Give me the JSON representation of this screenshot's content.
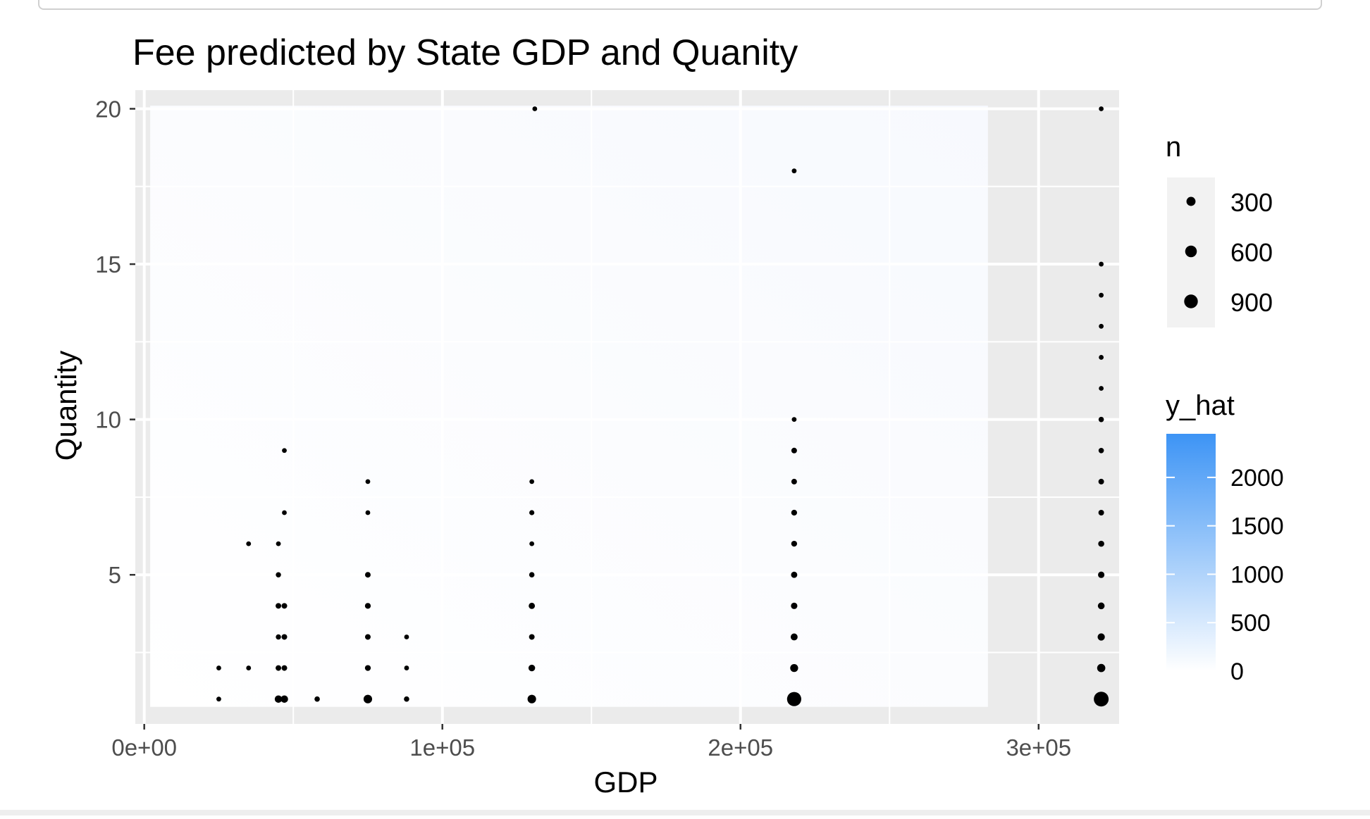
{
  "chart_data": {
    "type": "scatter",
    "title": "Fee predicted by State GDP and Quanity",
    "xlabel": "GDP",
    "ylabel": "Quantity",
    "xlim": [
      -3000,
      327000
    ],
    "ylim": [
      0.2,
      20.6
    ],
    "x_ticks": [
      {
        "value": 0,
        "label": "0e+00"
      },
      {
        "value": 100000,
        "label": "1e+05"
      },
      {
        "value": 200000,
        "label": "2e+05"
      },
      {
        "value": 300000,
        "label": "3e+05"
      }
    ],
    "y_ticks": [
      {
        "value": 5,
        "label": "5"
      },
      {
        "value": 10,
        "label": "10"
      },
      {
        "value": 15,
        "label": "15"
      },
      {
        "value": 20,
        "label": "20"
      }
    ],
    "grid": true,
    "prediction_surface": {
      "gdp_range": [
        2000,
        283000
      ],
      "quantity_range": [
        0.75,
        20.1
      ],
      "fill_color_low": "#ffffff",
      "fill_color_high": "#f7f9fe"
    },
    "points": [
      {
        "x": 25000,
        "y": 1,
        "n": 30
      },
      {
        "x": 25000,
        "y": 2,
        "n": 30
      },
      {
        "x": 35000,
        "y": 2,
        "n": 30
      },
      {
        "x": 35000,
        "y": 6,
        "n": 30
      },
      {
        "x": 45000,
        "y": 1,
        "n": 160
      },
      {
        "x": 45000,
        "y": 2,
        "n": 60
      },
      {
        "x": 45000,
        "y": 3,
        "n": 45
      },
      {
        "x": 45000,
        "y": 4,
        "n": 60
      },
      {
        "x": 45000,
        "y": 5,
        "n": 45
      },
      {
        "x": 45000,
        "y": 6,
        "n": 30
      },
      {
        "x": 47000,
        "y": 1,
        "n": 160
      },
      {
        "x": 47000,
        "y": 2,
        "n": 60
      },
      {
        "x": 47000,
        "y": 3,
        "n": 60
      },
      {
        "x": 47000,
        "y": 4,
        "n": 60
      },
      {
        "x": 47000,
        "y": 7,
        "n": 30
      },
      {
        "x": 47000,
        "y": 9,
        "n": 30
      },
      {
        "x": 58000,
        "y": 1,
        "n": 50
      },
      {
        "x": 75000,
        "y": 1,
        "n": 250
      },
      {
        "x": 75000,
        "y": 2,
        "n": 70
      },
      {
        "x": 75000,
        "y": 3,
        "n": 60
      },
      {
        "x": 75000,
        "y": 4,
        "n": 70
      },
      {
        "x": 75000,
        "y": 5,
        "n": 60
      },
      {
        "x": 75000,
        "y": 7,
        "n": 30
      },
      {
        "x": 75000,
        "y": 8,
        "n": 30
      },
      {
        "x": 88000,
        "y": 1,
        "n": 50
      },
      {
        "x": 88000,
        "y": 2,
        "n": 30
      },
      {
        "x": 88000,
        "y": 3,
        "n": 30
      },
      {
        "x": 130000,
        "y": 1,
        "n": 250
      },
      {
        "x": 130000,
        "y": 2,
        "n": 110
      },
      {
        "x": 130000,
        "y": 3,
        "n": 60
      },
      {
        "x": 130000,
        "y": 4,
        "n": 90
      },
      {
        "x": 130000,
        "y": 5,
        "n": 50
      },
      {
        "x": 130000,
        "y": 6,
        "n": 30
      },
      {
        "x": 130000,
        "y": 7,
        "n": 40
      },
      {
        "x": 130000,
        "y": 8,
        "n": 30
      },
      {
        "x": 131000,
        "y": 20,
        "n": 30
      },
      {
        "x": 218000,
        "y": 1,
        "n": 1000
      },
      {
        "x": 218000,
        "y": 2,
        "n": 200
      },
      {
        "x": 218000,
        "y": 3,
        "n": 130
      },
      {
        "x": 218000,
        "y": 4,
        "n": 100
      },
      {
        "x": 218000,
        "y": 5,
        "n": 90
      },
      {
        "x": 218000,
        "y": 6,
        "n": 70
      },
      {
        "x": 218000,
        "y": 7,
        "n": 70
      },
      {
        "x": 218000,
        "y": 8,
        "n": 60
      },
      {
        "x": 218000,
        "y": 9,
        "n": 60
      },
      {
        "x": 218000,
        "y": 10,
        "n": 30
      },
      {
        "x": 218000,
        "y": 18,
        "n": 30
      },
      {
        "x": 321000,
        "y": 1,
        "n": 1100
      },
      {
        "x": 321000,
        "y": 2,
        "n": 220
      },
      {
        "x": 321000,
        "y": 3,
        "n": 150
      },
      {
        "x": 321000,
        "y": 4,
        "n": 120
      },
      {
        "x": 321000,
        "y": 5,
        "n": 100
      },
      {
        "x": 321000,
        "y": 6,
        "n": 80
      },
      {
        "x": 321000,
        "y": 7,
        "n": 60
      },
      {
        "x": 321000,
        "y": 8,
        "n": 60
      },
      {
        "x": 321000,
        "y": 9,
        "n": 50
      },
      {
        "x": 321000,
        "y": 10,
        "n": 50
      },
      {
        "x": 321000,
        "y": 11,
        "n": 30
      },
      {
        "x": 321000,
        "y": 12,
        "n": 30
      },
      {
        "x": 321000,
        "y": 13,
        "n": 30
      },
      {
        "x": 321000,
        "y": 14,
        "n": 30
      },
      {
        "x": 321000,
        "y": 15,
        "n": 30
      },
      {
        "x": 321000,
        "y": 20,
        "n": 30
      }
    ],
    "size_legend": {
      "title": "n",
      "entries": [
        {
          "value": 300,
          "label": "300"
        },
        {
          "value": 600,
          "label": "600"
        },
        {
          "value": 900,
          "label": "900"
        }
      ]
    },
    "color_legend": {
      "title": "y_hat",
      "range": [
        0,
        2450
      ],
      "color_low": "#ffffff",
      "color_high": "#3d94f5",
      "ticks": [
        {
          "value": 0,
          "label": "0"
        },
        {
          "value": 500,
          "label": "500"
        },
        {
          "value": 1000,
          "label": "1000"
        },
        {
          "value": 1500,
          "label": "1500"
        },
        {
          "value": 2000,
          "label": "2000"
        }
      ]
    },
    "colors": {
      "panel_background": "#ebebeb",
      "grid_line": "#ffffff",
      "point": "#000000",
      "axis_text": "#4d4d4d",
      "title_text": "#000000"
    }
  }
}
